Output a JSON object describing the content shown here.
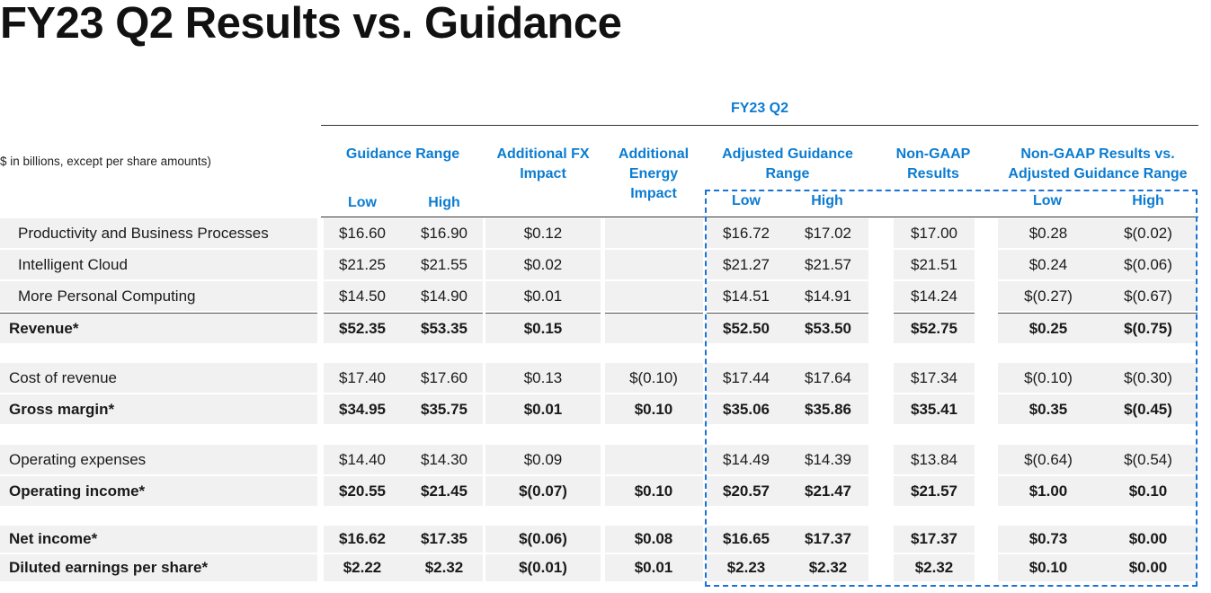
{
  "title": "FY23 Q2 Results vs. Guidance",
  "note": "$ in billions, except per share amounts)",
  "headers": {
    "fy": "FY23 Q2",
    "guidance_range": "Guidance Range",
    "low": "Low",
    "high": "High",
    "fx_impact_1": "Additional FX",
    "fx_impact_2": "Impact",
    "energy_1": "Additional",
    "energy_2": "Energy",
    "energy_3": "Impact",
    "adjusted_1": "Adjusted Guidance",
    "adjusted_2": "Range",
    "nongaap_1": "Non-GAAP",
    "nongaap_2": "Results",
    "vs_1": "Non-GAAP Results vs.",
    "vs_2": "Adjusted Guidance Range"
  },
  "accent_color": "#0b7cd1",
  "dashed_box_color": "#1a72d4",
  "rows": [
    {
      "label": "Productivity and Business Processes",
      "bold": false,
      "indent": true,
      "values": [
        "$16.60",
        "$16.90",
        "$0.12",
        "",
        "$16.72",
        "$17.02",
        "$17.00",
        "$0.28",
        "$(0.02)"
      ]
    },
    {
      "label": "Intelligent Cloud",
      "bold": false,
      "indent": true,
      "values": [
        "$21.25",
        "$21.55",
        "$0.02",
        "",
        "$21.27",
        "$21.57",
        "$21.51",
        "$0.24",
        "$(0.06)"
      ]
    },
    {
      "label": "More Personal Computing",
      "bold": false,
      "indent": true,
      "values": [
        "$14.50",
        "$14.90",
        "$0.01",
        "",
        "$14.51",
        "$14.91",
        "$14.24",
        "$(0.27)",
        "$(0.67)"
      ]
    },
    {
      "label": "Revenue*",
      "bold": true,
      "indent": false,
      "values": [
        "$52.35",
        "$53.35",
        "$0.15",
        "",
        "$52.50",
        "$53.50",
        "$52.75",
        "$0.25",
        "$(0.75)"
      ]
    },
    {
      "label": "Cost of revenue",
      "bold": false,
      "indent": false,
      "values": [
        "$17.40",
        "$17.60",
        "$0.13",
        "$(0.10)",
        "$17.44",
        "$17.64",
        "$17.34",
        "$(0.10)",
        "$(0.30)"
      ]
    },
    {
      "label": "Gross margin*",
      "bold": true,
      "indent": false,
      "values": [
        "$34.95",
        "$35.75",
        "$0.01",
        "$0.10",
        "$35.06",
        "$35.86",
        "$35.41",
        "$0.35",
        "$(0.45)"
      ]
    },
    {
      "label": "Operating expenses",
      "bold": false,
      "indent": false,
      "values": [
        "$14.40",
        "$14.30",
        "$0.09",
        "",
        "$14.49",
        "$14.39",
        "$13.84",
        "$(0.64)",
        "$(0.54)"
      ]
    },
    {
      "label": "Operating income*",
      "bold": true,
      "indent": false,
      "values": [
        "$20.55",
        "$21.45",
        "$(0.07)",
        "$0.10",
        "$20.57",
        "$21.47",
        "$21.57",
        "$1.00",
        "$0.10"
      ]
    },
    {
      "label": "Net income*",
      "bold": true,
      "indent": false,
      "values": [
        "$16.62",
        "$17.35",
        "$(0.06)",
        "$0.08",
        "$16.65",
        "$17.37",
        "$17.37",
        "$0.73",
        "$0.00"
      ]
    },
    {
      "label": "Diluted earnings per share*",
      "bold": true,
      "indent": false,
      "values": [
        "$2.22",
        "$2.32",
        "$(0.01)",
        "$0.01",
        "$2.23",
        "$2.32",
        "$2.32",
        "$0.10",
        "$0.00"
      ]
    }
  ]
}
